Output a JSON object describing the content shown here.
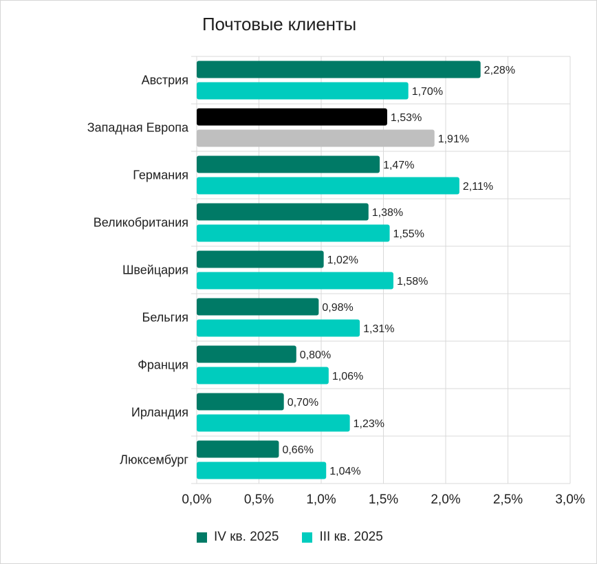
{
  "chart_data": {
    "type": "bar",
    "orientation": "horizontal",
    "title": "Почтовые клиенты",
    "categories": [
      "Австрия",
      "Западная Европа",
      "Германия",
      "Великобритания",
      "Швейцария",
      "Бельгия",
      "Франция",
      "Ирландия",
      "Люксембург"
    ],
    "series": [
      {
        "name": "IV кв. 2025",
        "color": "#007a66",
        "values": [
          2.28,
          1.53,
          1.47,
          1.38,
          1.02,
          0.98,
          0.8,
          0.7,
          0.66
        ],
        "labels": [
          "2,28%",
          "1,53%",
          "1,47%",
          "1,38%",
          "1,02%",
          "0,98%",
          "0,80%",
          "0,70%",
          "0,66%"
        ]
      },
      {
        "name": "III кв. 2025",
        "color": "#00ccbe",
        "values": [
          1.7,
          1.91,
          2.11,
          1.55,
          1.58,
          1.31,
          1.06,
          1.23,
          1.04
        ],
        "labels": [
          "1,70%",
          "1,91%",
          "2,11%",
          "1,55%",
          "1,58%",
          "1,31%",
          "1,06%",
          "1,23%",
          "1,04%"
        ]
      }
    ],
    "highlight": {
      "category": "Западная Европа",
      "colors": [
        "#000000",
        "#bfbfbf"
      ]
    },
    "xlim": [
      0,
      3
    ],
    "x_ticks": [
      {
        "value": 0,
        "label": "0,0%"
      },
      {
        "value": 0.5,
        "label": "0,5%"
      },
      {
        "value": 1.0,
        "label": "1,0%"
      },
      {
        "value": 1.5,
        "label": "1,5%"
      },
      {
        "value": 2.0,
        "label": "2,0%"
      },
      {
        "value": 2.5,
        "label": "2,5%"
      },
      {
        "value": 3.0,
        "label": "3,0%"
      }
    ],
    "grid": true,
    "legend_position": "bottom"
  }
}
